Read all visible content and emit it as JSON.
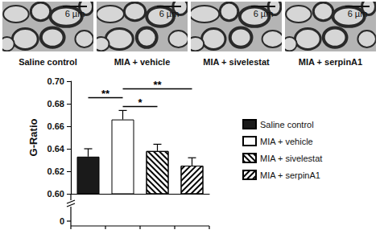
{
  "images": [
    {
      "label": "Saline control",
      "scale_bar": "6 µm"
    },
    {
      "label": "MIA + vehicle",
      "scale_bar": "6 µm"
    },
    {
      "label": "MIA + sivelestat",
      "scale_bar": "6 µm"
    },
    {
      "label": "MIA + serpinA1",
      "scale_bar": "6 µm"
    }
  ],
  "chart_data": {
    "type": "bar",
    "y_label": "G-Ratio",
    "categories": [
      null,
      null,
      null,
      null
    ],
    "series": [
      {
        "name": "Saline control",
        "color": "#1a1a1a",
        "values": [
          0.633,
          null,
          null,
          null
        ],
        "errors": [
          0.007,
          null,
          null,
          null
        ]
      },
      {
        "name": "MIA + vehicle",
        "color": "#ffffff",
        "values": [
          null,
          0.666,
          null,
          null
        ],
        "errors": [
          null,
          0.008,
          null,
          null
        ]
      },
      {
        "name": "MIA + sivelestat",
        "color": "#ffffff",
        "values": [
          null,
          null,
          0.638,
          null
        ],
        "errors": [
          null,
          null,
          0.006,
          null
        ]
      },
      {
        "name": "MIA + serpinA1",
        "color": "#ffffff",
        "values": [
          null,
          null,
          null,
          0.625
        ],
        "errors": [
          null,
          null,
          null,
          0.007
        ]
      }
    ],
    "ylim": [
      0.6,
      0.7
    ],
    "yticks": [
      {
        "value": 0.6,
        "label": "0.60"
      },
      0.62,
      0.64,
      0.66,
      0.68,
      {
        "value": 0.7,
        "label": "0.70"
      }
    ],
    "y_break": {
      "value": 0,
      "label": "0"
    },
    "annotations": [
      {
        "between": [
          "MIA + vehicle",
          "MIA + sivelestat"
        ],
        "label": "*"
      },
      {
        "between": [
          "Saline control",
          "MIA + vehicle"
        ],
        "label": "**"
      },
      {
        "between": [
          "MIA + vehicle",
          "MIA + serpinA1"
        ],
        "label": "**"
      }
    ],
    "legend": "right",
    "tick_labels": "y"
  }
}
